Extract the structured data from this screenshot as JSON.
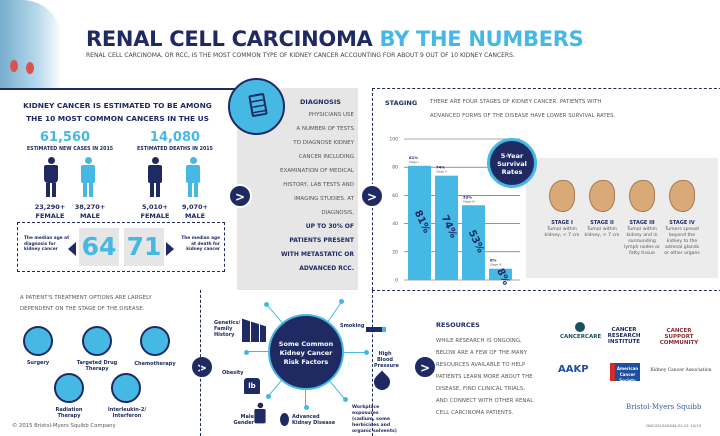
{
  "header": {
    "title_dark": "RENAL CELL CARCINOMA",
    "title_light": "BY THE NUMBERS",
    "subtitle": "RENAL CELL CARCINOMA, OR RCC, IS THE MOST COMMON TYPE OF KIDNEY CANCER  ACCOUNTING FOR ABOUT 9 OUT OF 10 KIDNEY CANCERS."
  },
  "stats": {
    "heading_line1": "KIDNEY CANCER IS ESTIMATED TO BE AMONG",
    "heading_line2": "THE 10 MOST COMMON CANCERS IN THE US",
    "new_cases": {
      "value": "61,560",
      "label": "ESTIMATED NEW CASES IN 2015",
      "female": "23,290+",
      "female_label": "FEMALE",
      "male": "38,270+",
      "male_label": "MALE"
    },
    "deaths": {
      "value": "14,080",
      "label": "ESTIMATED DEATHS IN 2015",
      "female": "5,010+",
      "female_label": "FEMALE",
      "male": "9,070+",
      "male_label": "MALE"
    },
    "median_diagnosis": {
      "label": "The median age at diagnosis for kidney cancer",
      "value": "64"
    },
    "median_death": {
      "label": "The median age at death for kidney cancer",
      "value": "71"
    }
  },
  "diagnosis": {
    "title": "DIAGNOSIS",
    "lines": [
      "PHYSICIANS USE",
      "A NUMBER OF TESTS",
      "TO DIAGNOSE KIDNEY",
      "CANCER INCLUDING",
      "EXAMINATION OF MEDICAL",
      "HISTORY, LAB TESTS AND",
      "IMAGING STUDIES. AT",
      "DIAGNOSIS,"
    ],
    "bold_lines": [
      "UP TO 30% OF",
      "PATIENTS PRESENT",
      "WITH METASTATIC OR",
      "ADVANCED RCC."
    ]
  },
  "staging": {
    "title": "STAGING",
    "line1": "THERE ARE FOUR STAGES OF KIDNEY CANCER. PATIENTS WITH",
    "line2": "ADVANCED FORMS OF THE DISEASE HAVE LOWER SURVIVAL RATES.",
    "badge": "5-Year Survival Rates",
    "stages": [
      {
        "name": "STAGE I",
        "desc": "Tumor within kidney, < 7 cm"
      },
      {
        "name": "STAGE II",
        "desc": "Tumor within kidney, > 7 cm"
      },
      {
        "name": "STAGE III",
        "desc": "Tumor within kidney and in surrounding lymph nodes or fatty tissue"
      },
      {
        "name": "STAGE IV",
        "desc": "Tumors spread beyond the kidney to the adrenal glands or other organs"
      }
    ]
  },
  "chart_data": {
    "type": "bar",
    "categories": [
      "Stage I",
      "Stage II",
      "Stage III",
      "Stage IV"
    ],
    "values": [
      81,
      74,
      53,
      8
    ],
    "data_labels": [
      "81%",
      "74%",
      "53%",
      "8%"
    ],
    "ylim": [
      0,
      100
    ],
    "yticks": [
      0,
      20,
      40,
      60,
      80,
      100
    ],
    "bar_color": "#45b9e3"
  },
  "treatment": {
    "line1": "A PATIENT'S TREATMENT OPTIONS ARE LARGELY",
    "line2": "DEPENDENT ON THE STAGE OF THE DISEASE.",
    "options": [
      "Surgery",
      "Targeted Drug Therapy",
      "Chemotherapy",
      "Radiation Therapy",
      "Interleukin-2/ Interferon"
    ]
  },
  "risk": {
    "center": "Some Common Kidney Cancer Risk Factors",
    "factors": [
      "Genetics/ Family History",
      "Smoking",
      "High Blood Pressure",
      "Workplace exposures (cadium, some herbicides and organic solvents)",
      "Advanced Kidney Disease",
      "Male Gender",
      "Obesity"
    ],
    "obesity_icon_text": "lb"
  },
  "resources": {
    "title": "RESOURCES",
    "lines": [
      "WHILE RESEARCH IS ONGOING,",
      "BELOW ARE A FEW OF THE MANY",
      "RESOURCES AVAILABLE TO HELP",
      "PATIENTS LEARN MORE ABOUT THE",
      "DISEASE, FIND CLINICAL TRIALS,",
      "AND CONNECT WITH OTHER RENAL",
      "CELL CARCINOMA PATIENTS."
    ],
    "logos": [
      "CANCERCARE",
      "CANCER RESEARCH INSTITUTE",
      "CANCER SUPPORT COMMUNITY",
      "AAKP",
      "American Cancer Society",
      "Kidney Cancer Association",
      "Bristol-Myers Squibb"
    ]
  },
  "footer": {
    "copyright": "© 2015 Bristol-Myers Squibb Company",
    "code": "ONCUS1502644-01-01 10/15"
  },
  "colors": {
    "navy": "#1f2a63",
    "light_blue": "#45b9e3",
    "panel_gray": "#e6e6e6"
  }
}
